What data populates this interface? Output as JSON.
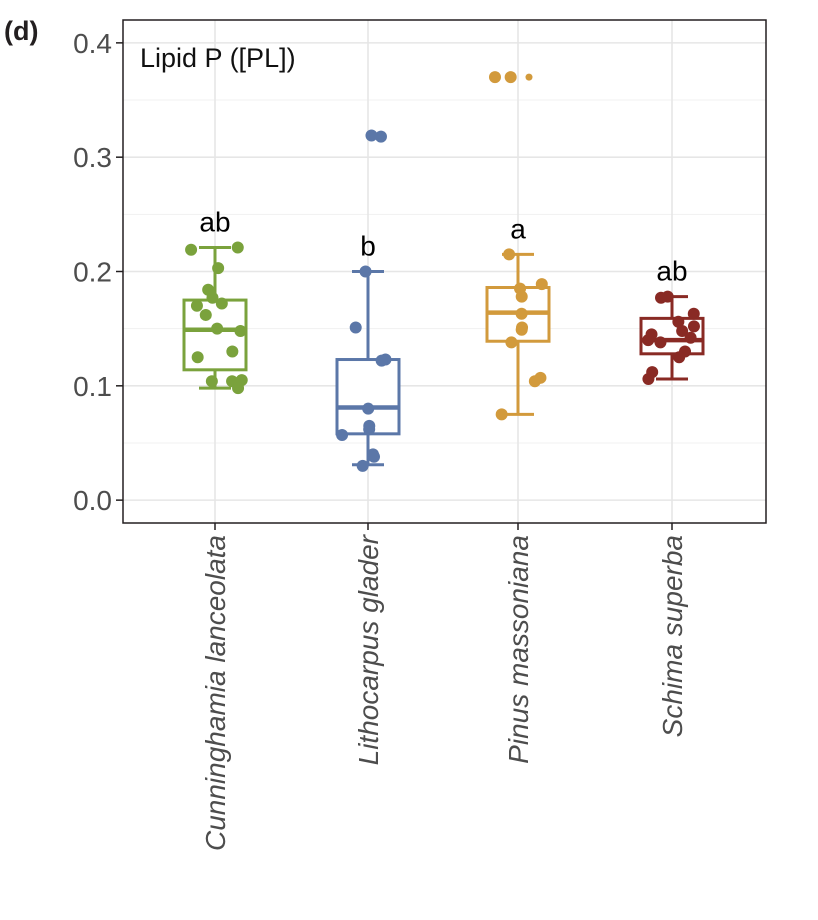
{
  "panel_label": "(d)",
  "chart_data": {
    "type": "boxplot",
    "title": "Lipid P ([PL])",
    "xlabel": "",
    "ylabel": "",
    "ylim": [
      -0.02,
      0.42
    ],
    "yticks": [
      0.0,
      0.1,
      0.2,
      0.3,
      0.4
    ],
    "ytick_labels": [
      "0.0",
      "0.1",
      "0.2",
      "0.3",
      "0.4"
    ],
    "grid": true,
    "legend": "none",
    "categories": [
      "Cunninghamia lanceolata",
      "Lithocarpus glader",
      "Pinus massoniana",
      "Schima superba"
    ],
    "series": [
      {
        "category": "Cunninghamia lanceolata",
        "color": "#7aa23c",
        "letter": "ab",
        "whisker_low": 0.098,
        "q1": 0.114,
        "median": 0.149,
        "q3": 0.175,
        "whisker_high": 0.221,
        "outliers": [],
        "points": [
          0.221,
          0.219,
          0.203,
          0.184,
          0.177,
          0.172,
          0.17,
          0.162,
          0.15,
          0.148,
          0.13,
          0.125,
          0.105,
          0.104,
          0.104,
          0.098
        ]
      },
      {
        "category": "Lithocarpus glader",
        "color": "#5b77a8",
        "letter": "b",
        "whisker_low": 0.031,
        "q1": 0.058,
        "median": 0.081,
        "q3": 0.123,
        "whisker_high": 0.2,
        "outliers": [
          0.319
        ],
        "points": [
          0.318,
          0.319,
          0.2,
          0.151,
          0.123,
          0.122,
          0.08,
          0.065,
          0.062,
          0.057,
          0.04,
          0.038,
          0.03
        ]
      },
      {
        "category": "Pinus massoniana",
        "color": "#d29a3c",
        "letter": "a",
        "whisker_low": 0.075,
        "q1": 0.139,
        "median": 0.164,
        "q3": 0.186,
        "whisker_high": 0.215,
        "outliers": [
          0.37
        ],
        "points": [
          0.37,
          0.37,
          0.215,
          0.189,
          0.185,
          0.178,
          0.163,
          0.151,
          0.149,
          0.138,
          0.107,
          0.104,
          0.075
        ]
      },
      {
        "category": "Schima superba",
        "color": "#892a24",
        "letter": "ab",
        "whisker_low": 0.106,
        "q1": 0.128,
        "median": 0.14,
        "q3": 0.159,
        "whisker_high": 0.178,
        "outliers": [],
        "points": [
          0.178,
          0.177,
          0.163,
          0.156,
          0.152,
          0.148,
          0.145,
          0.142,
          0.14,
          0.138,
          0.13,
          0.125,
          0.112,
          0.106
        ]
      }
    ]
  }
}
